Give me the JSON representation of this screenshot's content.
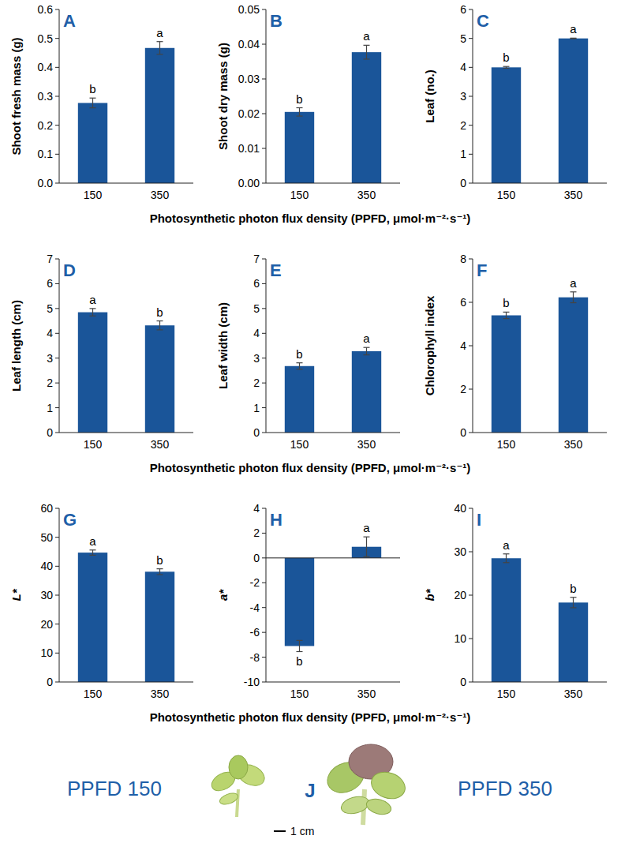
{
  "chart_data": [
    {
      "panel": "A",
      "type": "bar",
      "categories": [
        "150",
        "350"
      ],
      "values": [
        0.277,
        0.467
      ],
      "errors": [
        0.017,
        0.022
      ],
      "letters": [
        "b",
        "a"
      ],
      "ylabel": "Shoot fresh mass (g)",
      "ylim": [
        0,
        0.6
      ],
      "yticks": [
        {
          "value": 0,
          "label": "0.0"
        },
        {
          "value": 0.1,
          "label": "0.1"
        },
        {
          "value": 0.2,
          "label": "0.2"
        },
        {
          "value": 0.3,
          "label": "0.3"
        },
        {
          "value": 0.4,
          "label": "0.4"
        },
        {
          "value": 0.5,
          "label": "0.5"
        },
        {
          "value": 0.6,
          "label": "0.6"
        }
      ],
      "color": "#1a5599"
    },
    {
      "panel": "B",
      "type": "bar",
      "categories": [
        "150",
        "350"
      ],
      "values": [
        0.0205,
        0.0377
      ],
      "errors": [
        0.0012,
        0.002
      ],
      "letters": [
        "b",
        "a"
      ],
      "ylabel": "Shoot dry mass (g)",
      "xlabel": "Photosynthetic photon flux density (PPFD, μmol·m⁻²·s⁻¹)",
      "ylim": [
        0,
        0.05
      ],
      "yticks": [
        {
          "value": 0,
          "label": "0.00"
        },
        {
          "value": 0.01,
          "label": "0.01"
        },
        {
          "value": 0.02,
          "label": "0.02"
        },
        {
          "value": 0.03,
          "label": "0.03"
        },
        {
          "value": 0.04,
          "label": "0.04"
        },
        {
          "value": 0.05,
          "label": "0.05"
        }
      ],
      "color": "#1a5599"
    },
    {
      "panel": "C",
      "type": "bar",
      "categories": [
        "150",
        "350"
      ],
      "values": [
        4.0,
        5.0
      ],
      "errors": [
        0.03,
        0.01
      ],
      "letters": [
        "b",
        "a"
      ],
      "ylabel": "Leaf (no.)",
      "ylim": [
        0,
        6
      ],
      "yticks": [
        0,
        1,
        2,
        3,
        4,
        5,
        6
      ],
      "color": "#1a5599"
    },
    {
      "panel": "D",
      "type": "bar",
      "categories": [
        "150",
        "350"
      ],
      "values": [
        4.85,
        4.32
      ],
      "errors": [
        0.15,
        0.18
      ],
      "letters": [
        "a",
        "b"
      ],
      "ylabel": "Leaf length (cm)",
      "ylim": [
        0,
        7
      ],
      "yticks": [
        0,
        1,
        2,
        3,
        4,
        5,
        6,
        7
      ],
      "color": "#1a5599"
    },
    {
      "panel": "E",
      "type": "bar",
      "categories": [
        "150",
        "350"
      ],
      "values": [
        2.68,
        3.28
      ],
      "errors": [
        0.13,
        0.15
      ],
      "letters": [
        "b",
        "a"
      ],
      "ylabel": "Leaf width (cm)",
      "xlabel": "Photosynthetic photon flux density (PPFD, μmol·m⁻²·s⁻¹)",
      "ylim": [
        0,
        7
      ],
      "yticks": [
        0,
        1,
        2,
        3,
        4,
        5,
        6,
        7
      ],
      "color": "#1a5599"
    },
    {
      "panel": "F",
      "type": "bar",
      "categories": [
        "150",
        "350"
      ],
      "values": [
        5.4,
        6.23
      ],
      "errors": [
        0.15,
        0.25
      ],
      "letters": [
        "b",
        "a"
      ],
      "ylabel": "Chlorophyll index",
      "ylim": [
        0,
        8
      ],
      "yticks": [
        0,
        2,
        4,
        6,
        8
      ],
      "color": "#1a5599"
    },
    {
      "panel": "G",
      "type": "bar",
      "categories": [
        "150",
        "350"
      ],
      "values": [
        44.7,
        38.1
      ],
      "errors": [
        0.9,
        1.0
      ],
      "letters": [
        "a",
        "b"
      ],
      "ylabel": "L*",
      "ylim": [
        0,
        60
      ],
      "yticks": [
        0,
        10,
        20,
        30,
        40,
        50,
        60
      ],
      "color": "#1a5599"
    },
    {
      "panel": "H",
      "type": "bar",
      "categories": [
        "150",
        "350"
      ],
      "values": [
        -7.1,
        0.9
      ],
      "errors": [
        0.45,
        0.8
      ],
      "letters": [
        "b",
        "a"
      ],
      "ylabel": "a*",
      "xlabel": "Photosynthetic photon flux density (PPFD, μmol·m⁻²·s⁻¹)",
      "ylim": [
        -10,
        4
      ],
      "yticks": [
        -10,
        -8,
        -6,
        -4,
        -2,
        0,
        2,
        4
      ],
      "color": "#1a5599"
    },
    {
      "panel": "I",
      "type": "bar",
      "categories": [
        "150",
        "350"
      ],
      "values": [
        28.5,
        18.3
      ],
      "errors": [
        1.0,
        1.2
      ],
      "letters": [
        "a",
        "b"
      ],
      "ylabel": "b*",
      "ylim": [
        0,
        40
      ],
      "yticks": [
        0,
        10,
        20,
        30,
        40
      ],
      "color": "#1a5599"
    }
  ],
  "photo_panel": {
    "label": "J",
    "captions": [
      "PPFD 150",
      "PPFD 350"
    ],
    "scale_bar": "1 cm"
  }
}
